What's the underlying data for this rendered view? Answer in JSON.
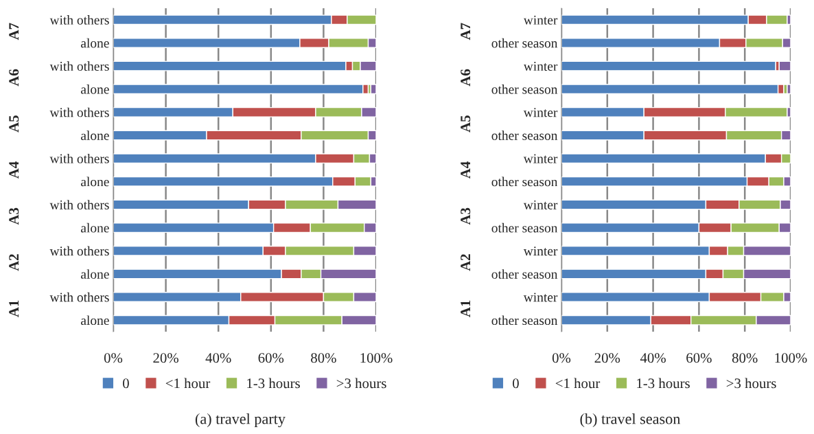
{
  "chart_data": [
    {
      "type": "bar",
      "orientation": "horizontal",
      "stacked": true,
      "title": "(a) travel party",
      "categories": [
        "with others",
        "alone",
        "with others",
        "alone",
        "with others",
        "alone",
        "with others",
        "alone",
        "with others",
        "alone",
        "with others",
        "alone",
        "with others",
        "alone"
      ],
      "annotations": [
        "A7",
        "A6",
        "A5",
        "A4",
        "A3",
        "A2",
        "A1"
      ],
      "series": [
        {
          "name": "0",
          "color": "#4f81bd",
          "values": [
            83,
            71,
            88.5,
            95,
            45.5,
            35.5,
            77,
            83.5,
            51.5,
            61,
            57,
            64,
            48.5,
            44
          ]
        },
        {
          "name": "<1 hour",
          "color": "#c0504d",
          "values": [
            6,
            11,
            2.5,
            2,
            31.5,
            36,
            14.5,
            8.5,
            14,
            14,
            8.5,
            7.5,
            31.5,
            17.5
          ]
        },
        {
          "name": "1-3 hours",
          "color": "#9bbb59",
          "values": [
            11,
            15,
            3,
            1,
            17.5,
            25.5,
            6,
            6,
            20,
            20.5,
            26,
            7.5,
            11.5,
            25.5
          ]
        },
        {
          "name": ">3 hours",
          "color": "#8064a2",
          "values": [
            0,
            3,
            6,
            2,
            5.5,
            3,
            2.5,
            2,
            14.5,
            4.5,
            8.5,
            21,
            8.5,
            13
          ]
        }
      ],
      "xlim": [
        0,
        100
      ],
      "xticks": [
        {
          "value": 0,
          "label": "0%"
        },
        {
          "value": 20,
          "label": "20%"
        },
        {
          "value": 40,
          "label": "40%"
        },
        {
          "value": 60,
          "label": "60%"
        },
        {
          "value": 80,
          "label": "80%"
        },
        {
          "value": 100,
          "label": "100%"
        }
      ],
      "grid": "x",
      "legend": "bottom"
    },
    {
      "type": "bar",
      "orientation": "horizontal",
      "stacked": true,
      "title": "(b) travel season",
      "categories": [
        "winter",
        "other season",
        "winter",
        "other season",
        "winter",
        "other season",
        "winter",
        "other season",
        "winter",
        "other season",
        "winter",
        "other season",
        "winter",
        "other season"
      ],
      "annotations": [
        "A7",
        "A6",
        "A5",
        "A4",
        "A3",
        "A2",
        "A1"
      ],
      "series": [
        {
          "name": "0",
          "color": "#4f81bd",
          "values": [
            81.5,
            69,
            93.5,
            94.5,
            36,
            36,
            89,
            81,
            63,
            60,
            64.5,
            63,
            64.5,
            39
          ]
        },
        {
          "name": "<1 hour",
          "color": "#c0504d",
          "values": [
            8,
            11.5,
            1.5,
            2.5,
            35.5,
            36,
            7,
            9.5,
            14.5,
            14,
            8,
            7.5,
            22.5,
            17.5
          ]
        },
        {
          "name": "1-3 hours",
          "color": "#9bbb59",
          "values": [
            9,
            16,
            0,
            1.5,
            27,
            24,
            4,
            6.5,
            18,
            21,
            7,
            9,
            10,
            28.5
          ]
        },
        {
          "name": ">3 hours",
          "color": "#8064a2",
          "values": [
            1.5,
            3.5,
            5,
            1.5,
            1.5,
            4,
            0,
            3,
            4.5,
            5,
            20.5,
            20.5,
            3,
            15
          ]
        }
      ],
      "xlim": [
        0,
        100
      ],
      "xticks": [
        {
          "value": 0,
          "label": "0%"
        },
        {
          "value": 20,
          "label": "20%"
        },
        {
          "value": 40,
          "label": "40%"
        },
        {
          "value": 60,
          "label": "60%"
        },
        {
          "value": 80,
          "label": "80%"
        },
        {
          "value": 100,
          "label": "100%"
        }
      ],
      "grid": "x",
      "legend": "bottom"
    }
  ]
}
